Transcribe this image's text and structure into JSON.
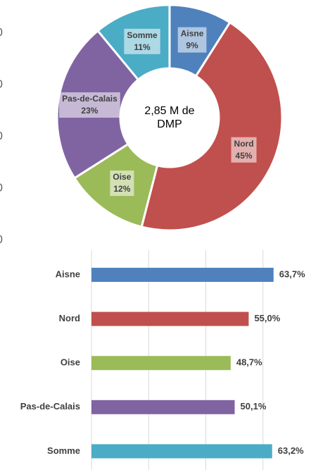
{
  "left_axis_fragments": [
    "0",
    "0",
    "0",
    "0",
    "0"
  ],
  "chart_data": [
    {
      "type": "donut",
      "center_label": "2,85 M de DMP",
      "categories": [
        "Aisne",
        "Nord",
        "Oise",
        "Pas-de-Calais",
        "Somme"
      ],
      "values": [
        9,
        45,
        12,
        23,
        11
      ],
      "value_labels": [
        "9%",
        "45%",
        "12%",
        "23%",
        "11%"
      ],
      "colors": [
        "#4f81bd",
        "#c0504d",
        "#9bbb59",
        "#8064a2",
        "#4bacc6"
      ]
    },
    {
      "type": "barh",
      "categories": [
        "Aisne",
        "Nord",
        "Oise",
        "Pas-de-Calais",
        "Somme"
      ],
      "values": [
        63.7,
        55.0,
        48.7,
        50.1,
        63.2
      ],
      "value_labels": [
        "63,7%",
        "55,0%",
        "48,7%",
        "50,1%",
        "63,2%"
      ],
      "colors": [
        "#4f81bd",
        "#c0504d",
        "#9bbb59",
        "#8064a2",
        "#4bacc6"
      ],
      "xlim": [
        0,
        80
      ],
      "xticks": [
        0,
        20,
        40,
        60
      ],
      "grid": true
    }
  ]
}
